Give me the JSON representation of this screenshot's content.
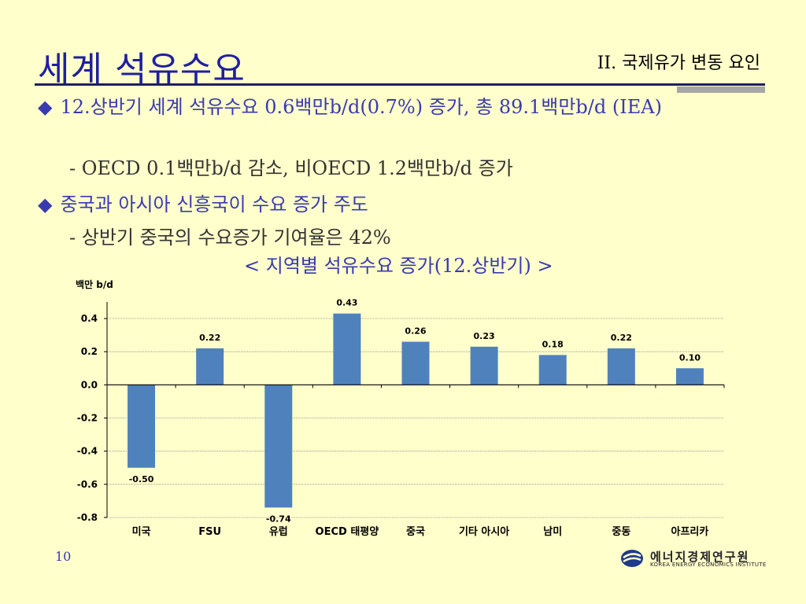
{
  "header": {
    "title": "세계 석유수요",
    "section": "II. 국제유가 변동 요인"
  },
  "content": {
    "bullet1": "12.상반기 세계 석유수요 0.6백만b/d(0.7%) 증가, 총 89.1백만b/d (IEA)",
    "sub1": "- OECD 0.1백만b/d 감소, 비OECD 1.2백만b/d 증가",
    "bullet2": "중국과 아시아 신흥국이 수요 증가 주도",
    "sub2": "- 상반기 중국의 수요증가 기여율은 42%",
    "chart_title": "< 지역별 석유수요 증가(12.상반기) >",
    "bullet_symbol": "◆"
  },
  "chart_data": {
    "type": "bar",
    "title": "< 지역별 석유수요 증가(12.상반기) >",
    "ylabel": "백만 b/d",
    "categories": [
      "미국",
      "FSU",
      "유럽",
      "OECD 태평양",
      "중국",
      "기타 아시아",
      "남미",
      "중동",
      "아프리카"
    ],
    "values": [
      -0.5,
      0.22,
      -0.74,
      0.43,
      0.26,
      0.23,
      0.18,
      0.22,
      0.1
    ],
    "value_labels": [
      "-0.50",
      "0.22",
      "-0.74",
      "0.43",
      "0.26",
      "0.23",
      "0.18",
      "0.22",
      "0.10"
    ],
    "yticks": [
      "0.4",
      "0.2",
      "0.0",
      "-0.2",
      "-0.4",
      "-0.6",
      "-0.8"
    ],
    "ylim": [
      -0.8,
      0.4
    ],
    "grid": true,
    "bar_color": "#4F81BD"
  },
  "footer": {
    "page_number": "10",
    "logo_korean": "에너지경제연구원",
    "logo_english": "KOREA ENERGY ECONOMICS INSTITUTE"
  }
}
